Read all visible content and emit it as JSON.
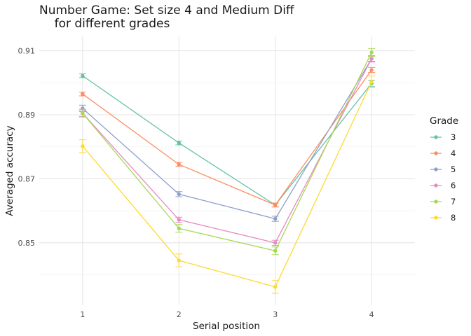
{
  "chart_data": {
    "type": "line",
    "title_line1": "Number Game: Set size 4 and Medium Diff",
    "title_line2": "    for different grades",
    "xlabel": "Serial position",
    "ylabel": "Averaged accuracy",
    "x": [
      1,
      2,
      3,
      4
    ],
    "x_tick_labels": [
      "1",
      "2",
      "3",
      "4"
    ],
    "ylim": [
      0.8305,
      0.9145
    ],
    "y_ticks": [
      0.85,
      0.87,
      0.89,
      0.91
    ],
    "y_tick_labels": [
      "0.85",
      "0.87",
      "0.89",
      "0.91"
    ],
    "grid": true,
    "legend_title": "Grade",
    "legend_position": "right",
    "series": [
      {
        "name": "3",
        "color": "#66c2a5",
        "values": [
          0.9022,
          0.8812,
          0.8618,
          0.8998
        ],
        "errors": [
          0.0006,
          0.0006,
          0.0006,
          0.001
        ]
      },
      {
        "name": "4",
        "color": "#fc8d62",
        "values": [
          0.8965,
          0.8745,
          0.8618,
          0.904
        ],
        "errors": [
          0.0006,
          0.0006,
          0.0006,
          0.0008
        ]
      },
      {
        "name": "5",
        "color": "#8da0cb",
        "values": [
          0.892,
          0.8652,
          0.8575,
          0.9075
        ],
        "errors": [
          0.001,
          0.0008,
          0.0008,
          0.0008
        ]
      },
      {
        "name": "6",
        "color": "#e78ac3",
        "values": [
          0.8905,
          0.8572,
          0.85,
          0.9075
        ],
        "errors": [
          0.001,
          0.0008,
          0.0008,
          0.001
        ]
      },
      {
        "name": "7",
        "color": "#a6d854",
        "values": [
          0.8905,
          0.8545,
          0.8475,
          0.9095
        ],
        "errors": [
          0.0012,
          0.0012,
          0.0012,
          0.0012
        ]
      },
      {
        "name": "8",
        "color": "#ffd92f",
        "values": [
          0.8802,
          0.8445,
          0.8362,
          0.9003
        ],
        "errors": [
          0.002,
          0.002,
          0.002,
          0.0018
        ]
      }
    ]
  }
}
